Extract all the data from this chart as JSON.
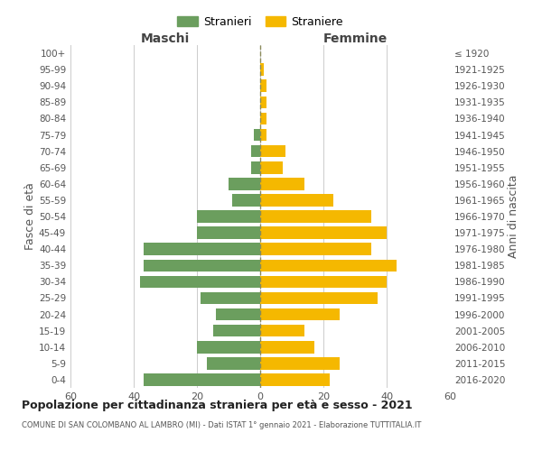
{
  "age_groups": [
    "0-4",
    "5-9",
    "10-14",
    "15-19",
    "20-24",
    "25-29",
    "30-34",
    "35-39",
    "40-44",
    "45-49",
    "50-54",
    "55-59",
    "60-64",
    "65-69",
    "70-74",
    "75-79",
    "80-84",
    "85-89",
    "90-94",
    "95-99",
    "100+"
  ],
  "birth_years": [
    "2016-2020",
    "2011-2015",
    "2006-2010",
    "2001-2005",
    "1996-2000",
    "1991-1995",
    "1986-1990",
    "1981-1985",
    "1976-1980",
    "1971-1975",
    "1966-1970",
    "1961-1965",
    "1956-1960",
    "1951-1955",
    "1946-1950",
    "1941-1945",
    "1936-1940",
    "1931-1935",
    "1926-1930",
    "1921-1925",
    "≤ 1920"
  ],
  "maschi": [
    37,
    17,
    20,
    15,
    14,
    19,
    38,
    37,
    37,
    20,
    20,
    9,
    10,
    3,
    3,
    2,
    0,
    0,
    0,
    0,
    0
  ],
  "femmine": [
    22,
    25,
    17,
    14,
    25,
    37,
    40,
    43,
    35,
    40,
    35,
    23,
    14,
    7,
    8,
    2,
    2,
    2,
    2,
    1,
    0
  ],
  "male_color": "#6b9e5e",
  "female_color": "#f5b800",
  "center_line_color": "#8a8a5a",
  "grid_color": "#cccccc",
  "bg_color": "#ffffff",
  "title": "Popolazione per cittadinanza straniera per età e sesso - 2021",
  "subtitle": "COMUNE DI SAN COLOMBANO AL LAMBRO (MI) - Dati ISTAT 1° gennaio 2021 - Elaborazione TUTTITALIA.IT",
  "left_header": "Maschi",
  "right_header": "Femmine",
  "left_label": "Fasce di età",
  "right_label": "Anni di nascita",
  "legend_male": "Stranieri",
  "legend_female": "Straniere",
  "xlim": 60,
  "bar_height": 0.75
}
